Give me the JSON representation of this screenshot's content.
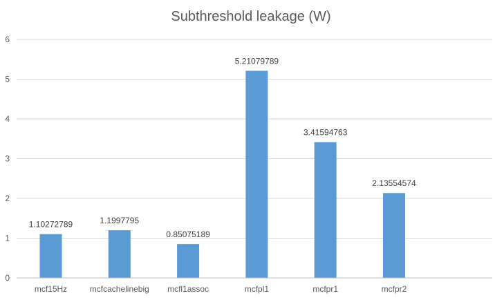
{
  "chart_data": {
    "type": "bar",
    "title": "Subthreshold leakage (W)",
    "xlabel": "",
    "ylabel": "",
    "categories": [
      "mcf15Hz",
      "mcfcachelinebig",
      "mcfl1assoc",
      "mcfpl1",
      "mcfpr1",
      "mcfpr2"
    ],
    "series": [
      {
        "values": [
          1.10272789,
          1.1997795,
          0.85075189,
          5.21079789,
          3.41594763,
          2.13554574
        ]
      }
    ],
    "data_labels": [
      "1.10272789",
      "1.1997795",
      "0.85075189",
      "5.21079789",
      "3.41594763",
      "2.13554574"
    ],
    "ylim": [
      0,
      6
    ],
    "yticks": [
      "0",
      "1",
      "2",
      "3",
      "4",
      "5",
      "6"
    ],
    "grid": true,
    "legend": "none",
    "colors": {
      "bar": "#5B9BD5",
      "grid": "#D9D9D9",
      "axis": "#BFBFBF",
      "text": "#595959",
      "data_label": "#404040"
    }
  }
}
